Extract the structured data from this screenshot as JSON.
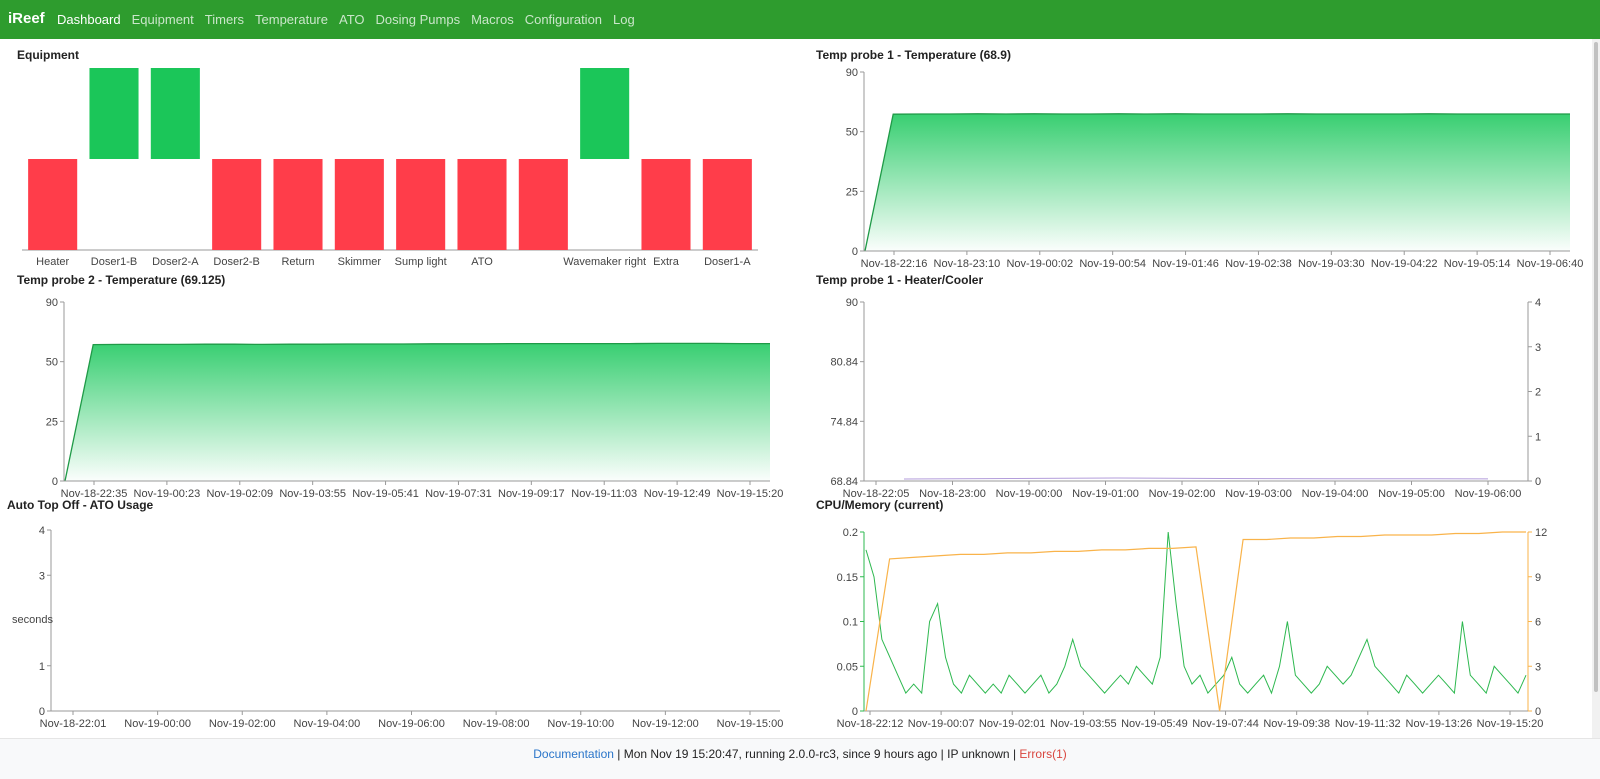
{
  "navbar": {
    "brand": "iReef",
    "items": [
      {
        "label": "Dashboard",
        "active": true
      },
      {
        "label": "Equipment"
      },
      {
        "label": "Timers"
      },
      {
        "label": "Temperature"
      },
      {
        "label": "ATO"
      },
      {
        "label": "Dosing Pumps"
      },
      {
        "label": "Macros"
      },
      {
        "label": "Configuration"
      },
      {
        "label": "Log"
      }
    ]
  },
  "panels": {
    "equipment": {
      "title": "Equipment"
    },
    "temp1": {
      "title": "Temp probe 1 - Temperature (68.9)"
    },
    "temp2": {
      "title": "Temp probe 2 - Temperature (69.125)"
    },
    "heater": {
      "title": "Temp probe 1 - Heater/Cooler"
    },
    "ato": {
      "title": "Auto Top Off - ATO Usage",
      "ylabel": "seconds"
    },
    "cpu": {
      "title": "CPU/Memory (current)"
    }
  },
  "colors": {
    "on": "#1bc659",
    "off": "#ff3d4a",
    "temp_line": "#1f9a47",
    "cpu": "#2db84f",
    "memory": "#f9b34a",
    "heater": "#b39ddb"
  },
  "chart_data": [
    {
      "type": "bar",
      "title": "Equipment",
      "categories": [
        "Heater",
        "Doser1-B",
        "Doser2-A",
        "Doser2-B",
        "Return",
        "Skimmer",
        "Sump light",
        "ATO",
        "",
        "Wavemaker right",
        "Extra",
        "Doser1-A"
      ],
      "values": [
        -1,
        1,
        1,
        -1,
        -1,
        -1,
        -1,
        -1,
        -1,
        1,
        -1,
        -1
      ],
      "legend_note": "on = green (up), off = red (down)"
    },
    {
      "type": "area",
      "title": "Temp probe 1 - Temperature (68.9)",
      "ylim": [
        0,
        90
      ],
      "yticks": [
        "90",
        "50",
        "25",
        "0"
      ],
      "xticks": [
        "Nov-18-22:16",
        "Nov-18-23:10",
        "Nov-19-00:02",
        "Nov-19-00:54",
        "Nov-19-01:46",
        "Nov-19-02:38",
        "Nov-19-03:30",
        "Nov-19-04:22",
        "Nov-19-05:14",
        "Nov-19-06:40"
      ],
      "values": [
        0,
        68.8,
        68.9,
        68.9,
        69.0,
        68.9,
        69.0,
        68.9,
        68.9,
        69.0,
        68.9,
        69.0,
        68.9,
        68.9,
        68.9,
        69.0,
        68.9,
        68.9,
        68.9,
        68.9,
        69.0,
        68.9,
        68.9,
        68.9,
        68.9,
        68.9
      ]
    },
    {
      "type": "area",
      "title": "Temp probe 2 - Temperature (69.125)",
      "ylim": [
        0,
        90
      ],
      "yticks": [
        "90",
        "50",
        "25",
        "0"
      ],
      "xticks": [
        "Nov-18-22:35",
        "Nov-19-00:23",
        "Nov-19-02:09",
        "Nov-19-03:55",
        "Nov-19-05:41",
        "Nov-19-07:31",
        "Nov-19-09:17",
        "Nov-19-11:03",
        "Nov-19-12:49",
        "Nov-19-15:20"
      ],
      "values": [
        0,
        68.6,
        68.7,
        68.7,
        68.7,
        68.8,
        68.8,
        68.7,
        68.8,
        68.8,
        68.9,
        68.9,
        68.9,
        69.0,
        69.0,
        69.0,
        69.1,
        69.1,
        69.1,
        69.1,
        69.1,
        69.2,
        69.2,
        69.2,
        69.1,
        69.1
      ]
    },
    {
      "type": "line",
      "title": "Temp probe 1 - Heater/Cooler",
      "ylim": [
        68.84,
        90
      ],
      "yticks": [
        "90",
        "80.84",
        "74.84",
        "68.84"
      ],
      "y2ticks": [
        "4",
        "3",
        "2",
        "1",
        "0"
      ],
      "xticks": [
        "Nov-18-22:05",
        "Nov-18-23:00",
        "Nov-19-00:00",
        "Nov-19-01:00",
        "Nov-19-02:00",
        "Nov-19-03:00",
        "Nov-19-04:00",
        "Nov-19-05:00",
        "Nov-19-06:00"
      ],
      "values": [
        0,
        0.02,
        0.05,
        0.08,
        0.1,
        0.08,
        0.05,
        0.04,
        0.03,
        0.02,
        0.02,
        0.01
      ]
    },
    {
      "type": "line",
      "title": "Auto Top Off - ATO Usage",
      "ylim": [
        0,
        4
      ],
      "yticks": [
        "4",
        "3",
        "1",
        "0"
      ],
      "xticks": [
        "Nov-18-22:01",
        "Nov-19-00:00",
        "Nov-19-02:00",
        "Nov-19-04:00",
        "Nov-19-06:00",
        "Nov-19-08:00",
        "Nov-19-10:00",
        "Nov-19-12:00",
        "Nov-19-15:00"
      ],
      "ylabel": "seconds",
      "values": []
    },
    {
      "type": "line",
      "title": "CPU/Memory (current)",
      "ylim": [
        0,
        0.2
      ],
      "y2lim": [
        0,
        12
      ],
      "yticks": [
        "0.2",
        "0.15",
        "0.1",
        "0.05",
        "0"
      ],
      "y2ticks": [
        "12",
        "9",
        "6",
        "3",
        "0"
      ],
      "xticks": [
        "Nov-18-22:12",
        "Nov-19-00:07",
        "Nov-19-02:01",
        "Nov-19-03:55",
        "Nov-19-05:49",
        "Nov-19-07:44",
        "Nov-19-09:38",
        "Nov-19-11:32",
        "Nov-19-13:26",
        "Nov-19-15:20"
      ],
      "series": [
        {
          "axis": "left",
          "values": [
            0.18,
            0.15,
            0.08,
            0.06,
            0.04,
            0.02,
            0.03,
            0.02,
            0.1,
            0.12,
            0.06,
            0.03,
            0.02,
            0.04,
            0.03,
            0.02,
            0.03,
            0.02,
            0.04,
            0.03,
            0.02,
            0.03,
            0.04,
            0.02,
            0.03,
            0.05,
            0.08,
            0.05,
            0.04,
            0.03,
            0.02,
            0.03,
            0.04,
            0.03,
            0.05,
            0.04,
            0.03,
            0.06,
            0.2,
            0.12,
            0.05,
            0.03,
            0.04,
            0.02,
            0.03,
            0.04,
            0.06,
            0.03,
            0.02,
            0.03,
            0.04,
            0.02,
            0.05,
            0.1,
            0.04,
            0.03,
            0.02,
            0.03,
            0.05,
            0.04,
            0.03,
            0.04,
            0.06,
            0.08,
            0.05,
            0.04,
            0.03,
            0.02,
            0.04,
            0.03,
            0.02,
            0.03,
            0.04,
            0.03,
            0.02,
            0.1,
            0.04,
            0.03,
            0.02,
            0.05,
            0.04,
            0.03,
            0.02,
            0.04
          ]
        },
        {
          "axis": "right",
          "values": [
            0,
            10.2,
            10.3,
            10.4,
            10.5,
            10.5,
            10.6,
            10.6,
            10.7,
            10.7,
            10.8,
            10.8,
            10.9,
            10.9,
            11.0,
            0,
            11.5,
            11.5,
            11.6,
            11.6,
            11.7,
            11.7,
            11.8,
            11.8,
            11.8,
            11.9,
            11.9,
            12.0,
            12.0
          ]
        }
      ]
    }
  ],
  "footer": {
    "documentation": "Documentation",
    "date": "Mon Nov 19 15:20:47,",
    "running": "running 2.0.0-rc3,",
    "since": "since 9 hours ago",
    "ip": "IP unknown",
    "errors": "Errors(1)"
  }
}
